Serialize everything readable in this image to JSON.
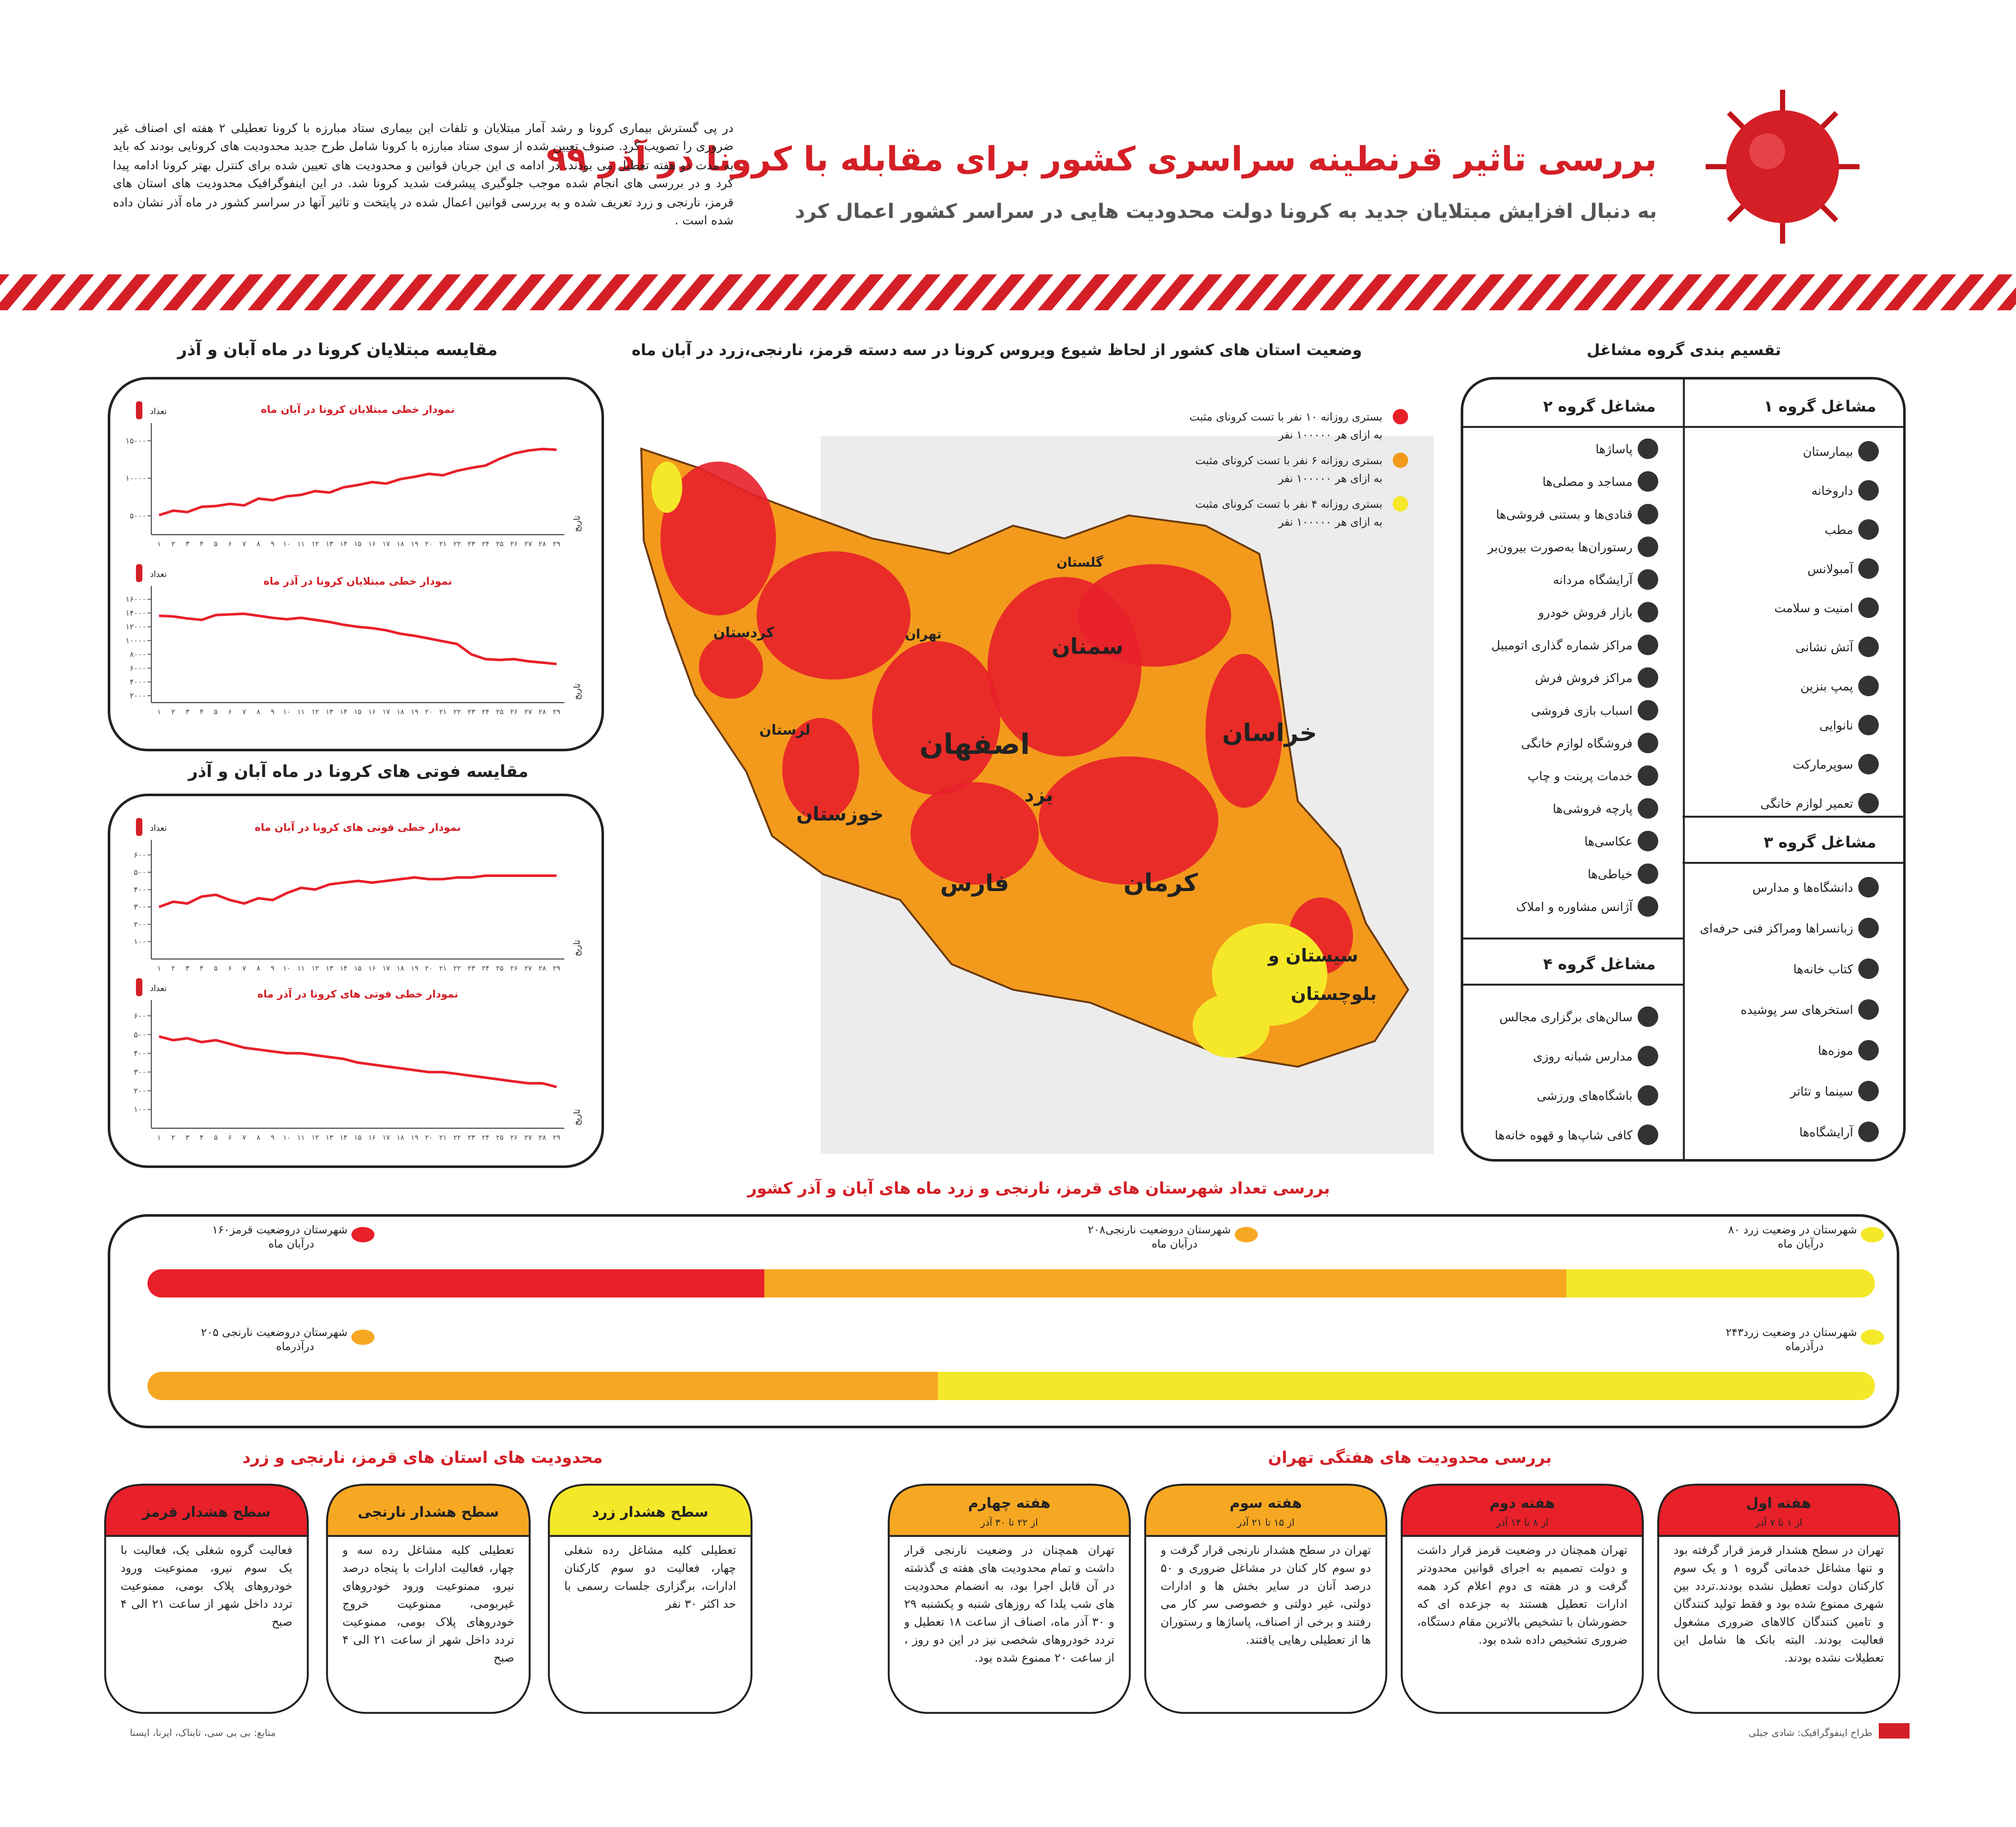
{
  "header": {
    "title": "بررسی تاثیر قرنطینه سراسری کشور برای مقابله با کرونا در آذر ۹۹",
    "subtitle": "به دنبال افزایش مبتلایان جدید به کرونا  دولت محدودیت هایی در سراسر کشور اعمال کرد",
    "intro": "در پی گسترش بیماری کرونا و رشد آمار مبتلایان و تلفات این بیماری ستاد مبارزه با کرونا تعطیلی ۲ هفته ای اصناف غیر ضروری را تصویب کرد. صنوف تعیین شده از سوی ستاد مبارزه با کرونا شامل طرح جدید محدودیت های کرونایی بودند که باید به مدت دو هفته تعطیل می بودند. در ادامه ی این جریان قوانین و محدودیت های تعیین شده برای کنترل بهتر کرونا ادامه پیدا کرد و در بررسی های انجام شده موجب جلوگیری پیشرفت شدید کرونا شد. در این اینفوگرافیک محدودیت های استان های قرمز، نارنجی و زرد تعریف شده و به بررسی قوانین اعمال شده در پایتخت و تاثیر آنها در سراسر کشور در ماه آذر نشان داده شده است ."
  },
  "cases_section": {
    "title": "مقایسه مبتلایان کرونا در ماه آبان و آذر",
    "charts": [
      {
        "type": "line",
        "title": "نمودار خطی مبتلایان کرونا در آبان ماه",
        "y_label": "تعداد",
        "x_label": "تاریخ",
        "color": "#e8202a",
        "categories": [
          "۱",
          "۲",
          "۳",
          "۴",
          "۵",
          "۶",
          "۷",
          "۸",
          "۹",
          "۱۰",
          "۱۱",
          "۱۲",
          "۱۳",
          "۱۴",
          "۱۵",
          "۱۶",
          "۱۷",
          "۱۸",
          "۱۹",
          "۲۰",
          "۲۱",
          "۲۲",
          "۲۳",
          "۲۴",
          "۲۵",
          "۲۶",
          "۲۷",
          "۲۸",
          "۲۹"
        ],
        "values": [
          5100,
          5700,
          5500,
          6200,
          6300,
          6600,
          6400,
          7300,
          7100,
          7600,
          7800,
          8300,
          8100,
          8800,
          9100,
          9500,
          9300,
          9900,
          10200,
          10600,
          10400,
          11000,
          11400,
          11700,
          12600,
          13300,
          13700,
          13900,
          13800
        ],
        "ylim": [
          2500,
          16500
        ],
        "yticks": [
          {
            "value": 5000,
            "label": "۵۰۰۰"
          },
          {
            "value": 10000,
            "label": "۱۰۰۰۰"
          },
          {
            "value": 15000,
            "label": "۱۵۰۰۰"
          }
        ]
      },
      {
        "type": "line",
        "title": "نمودار خطی مبتلایان کرونا در آذر ماه",
        "y_label": "تعداد",
        "x_label": "تاریخ",
        "color": "#e8202a",
        "categories": [
          "۱",
          "۲",
          "۳",
          "۴",
          "۵",
          "۶",
          "۷",
          "۸",
          "۹",
          "۱۰",
          "۱۱",
          "۱۲",
          "۱۳",
          "۱۴",
          "۱۵",
          "۱۶",
          "۱۷",
          "۱۸",
          "۱۹",
          "۲۰",
          "۲۱",
          "۲۲",
          "۲۳",
          "۲۴",
          "۲۵",
          "۲۶",
          "۲۷",
          "۲۸",
          "۲۹"
        ],
        "values": [
          13600,
          13500,
          13200,
          13000,
          13700,
          13800,
          13900,
          13600,
          13300,
          13100,
          13300,
          13000,
          12700,
          12300,
          12000,
          11800,
          11500,
          11000,
          10700,
          10300,
          9900,
          9500,
          8000,
          7300,
          7200,
          7300,
          7000,
          6800,
          6600
        ],
        "ylim": [
          1000,
          17000
        ],
        "yticks": [
          {
            "value": 2000,
            "label": "۲۰۰۰"
          },
          {
            "value": 4000,
            "label": "۴۰۰۰"
          },
          {
            "value": 6000,
            "label": "۶۰۰۰"
          },
          {
            "value": 8000,
            "label": "۸۰۰۰"
          },
          {
            "value": 10000,
            "label": "۱۰۰۰۰"
          },
          {
            "value": 12000,
            "label": "۱۲۰۰۰"
          },
          {
            "value": 14000,
            "label": "۱۴۰۰۰"
          },
          {
            "value": 16000,
            "label": "۱۶۰۰۰"
          }
        ]
      }
    ]
  },
  "deaths_section": {
    "title": "مقایسه فوتی های کرونا در ماه آبان و آذر",
    "charts": [
      {
        "type": "line",
        "title": "نمودار خطی فوتی های کرونا در آبان ماه",
        "y_label": "تعداد",
        "x_label": "تاریخ",
        "color": "#e8202a",
        "categories": [
          "۱",
          "۲",
          "۳",
          "۴",
          "۵",
          "۶",
          "۷",
          "۸",
          "۹",
          "۱۰",
          "۱۱",
          "۱۲",
          "۱۳",
          "۱۴",
          "۱۵",
          "۱۶",
          "۱۷",
          "۱۸",
          "۱۹",
          "۲۰",
          "۲۱",
          "۲۲",
          "۲۳",
          "۲۴",
          "۲۵",
          "۲۶",
          "۲۷",
          "۲۸",
          "۲۹"
        ],
        "values": [
          300,
          330,
          320,
          360,
          370,
          340,
          320,
          350,
          340,
          380,
          410,
          400,
          430,
          440,
          450,
          440,
          450,
          460,
          470,
          460,
          460,
          470,
          470,
          480,
          480,
          480,
          480,
          480,
          480
        ],
        "ylim": [
          0,
          650
        ],
        "yticks": [
          {
            "value": 100,
            "label": "۱۰۰"
          },
          {
            "value": 200,
            "label": "۲۰۰"
          },
          {
            "value": 300,
            "label": "۳۰۰"
          },
          {
            "value": 400,
            "label": "۴۰۰"
          },
          {
            "value": 500,
            "label": "۵۰۰"
          },
          {
            "value": 600,
            "label": "۶۰۰"
          }
        ]
      },
      {
        "type": "line",
        "title": "نمودار خطی فوتی های کرونا در آذر ماه",
        "y_label": "تعداد",
        "x_label": "تاریخ",
        "color": "#e8202a",
        "categories": [
          "۱",
          "۲",
          "۳",
          "۴",
          "۵",
          "۶",
          "۷",
          "۸",
          "۹",
          "۱۰",
          "۱۱",
          "۱۲",
          "۱۳",
          "۱۴",
          "۱۵",
          "۱۶",
          "۱۷",
          "۱۸",
          "۱۹",
          "۲۰",
          "۲۱",
          "۲۲",
          "۲۳",
          "۲۴",
          "۲۵",
          "۲۶",
          "۲۷",
          "۲۸",
          "۲۹"
        ],
        "values": [
          490,
          470,
          480,
          460,
          470,
          450,
          430,
          420,
          410,
          400,
          400,
          390,
          380,
          370,
          350,
          340,
          330,
          320,
          310,
          300,
          300,
          290,
          280,
          270,
          260,
          250,
          240,
          240,
          220
        ],
        "ylim": [
          0,
          650
        ],
        "yticks": [
          {
            "value": 100,
            "label": "۱۰۰"
          },
          {
            "value": 200,
            "label": "۲۰۰"
          },
          {
            "value": 300,
            "label": "۳۰۰"
          },
          {
            "value": 400,
            "label": "۴۰۰"
          },
          {
            "value": 500,
            "label": "۵۰۰"
          },
          {
            "value": 600,
            "label": "۶۰۰"
          }
        ]
      }
    ]
  },
  "map": {
    "title": "وضعیت استان های کشور از لحاظ شیوع ویروس کرونا در سه دسته قرمز، نارنجی،زرد در آبان ماه",
    "legend": [
      {
        "label": "بستری روزانه ۱۰ نفر با تست کرونای مثبت",
        "sub": "به ازای هر ۱۰۰۰۰۰ نفر",
        "color": "#e8202a"
      },
      {
        "label": "بستری روزانه ۶ نفر با تست کرونای مثبت",
        "sub": "به ازای هر ۱۰۰۰۰۰ نفر",
        "color": "#f39a1c"
      },
      {
        "label": "بستری روزانه ۴ نفر با تست کرونای مثبت",
        "sub": "به ازای هر ۱۰۰۰۰۰ نفر",
        "color": "#f5e829"
      }
    ],
    "provinces": [
      "سمنان",
      "اصفهان",
      "خراسان",
      "یزد",
      "کرمان",
      "فارس",
      "خوزستان",
      "لرستان",
      "کردستان",
      "تهران",
      "گلستان",
      "سیستان و",
      "بلوچستان"
    ]
  },
  "occupations": {
    "title": "تقسیم بندی گروه مشاغل",
    "groups": [
      {
        "title": "مشاغل گروه ۱",
        "items": [
          "بیمارستان",
          "داروخانه",
          "مطب",
          "آمبولانس",
          "امنیت و سلامت",
          "آتش نشانی",
          "پمپ بنزین",
          "نانوایی",
          "سوپرمارکت",
          "تعمیر لوازم خانگی"
        ]
      },
      {
        "title": "مشاغل گروه ۲",
        "items": [
          "پاساژها",
          "مساجد و مصلی‌ها",
          "قنادی‌ها و بستنی فروشی‌ها",
          "رستوران‌ها به‌صورت بیرون‌بر",
          "آرایشگاه مردانه",
          "بازار فروش خودرو",
          "مراکز شماره گذاری اتومبیل",
          "مراکز فروش فرش",
          "اسباب بازی فروشی",
          "فروشگاه لوازم خانگی",
          "خدمات پرینت و چاپ",
          "پارچه فروشی‌ها",
          "عکاسی‌ها",
          "خیاطی‌ها",
          "آژانس مشاوره و املاک"
        ]
      },
      {
        "title": "مشاغل گروه ۳",
        "items": [
          "دانشگاه‌ها و مدارس",
          "زبانسراها ومراکز فنی حرفه‌ای",
          "کتاب خانه‌ها",
          "استخرهای سر پوشیده",
          "موزه‌ها",
          "سینما و تئاتر",
          "آرایشگاه‌ها"
        ]
      },
      {
        "title": "مشاغل گروه ۴",
        "items": [
          "سالن‌های برگزاری مجالس",
          "مدارس شبانه روزی",
          "باشگاه‌های ورزشی",
          "کافی شاپ‌ها و قهوه خانه‌ها"
        ]
      }
    ]
  },
  "counties": {
    "title": "بررسی تعداد شهرستان های قرمز، نارنجی و زرد ماه های آبان و آذر کشور",
    "months": [
      {
        "segments": [
          {
            "value": 160,
            "label": "۱۶۰شهرستان دروضعیت قرمز",
            "sub": "درآبان ماه",
            "color": "#e8202a"
          },
          {
            "value": 208,
            "label": "۲۰۸شهرستان دروضعیت نارنجی",
            "sub": "درآبان ماه",
            "color": "#f7a823"
          },
          {
            "value": 80,
            "label": "۸۰ شهرستان در وضعیت زرد",
            "sub": "درآبان ماه",
            "color": "#f5e829"
          }
        ]
      },
      {
        "segments": [
          {
            "value": 205,
            "label": "۲۰۵ شهرستان دروضعیت نارنجی",
            "sub": "درآذرماه",
            "color": "#f7a823"
          },
          {
            "value": 243,
            "label": "۲۴۳شهرستان در وضعیت زرد",
            "sub": "درآذرماه",
            "color": "#f5e829"
          }
        ]
      }
    ]
  },
  "restrictions": {
    "title": "محدودیت های استان های قرمز، نارنجی و زرد",
    "cards": [
      {
        "title": "سطح هشدار قرمز",
        "color": "#e8202a",
        "text": "فعالیت گروه شغلی یک، فعالیت با یک سوم نیرو، ممنوعیت ورود خودروهای پلاک بومی، ممنوعیت تردد داخل شهر از ساعت ۲۱ الی ۴ صبح"
      },
      {
        "title": "سطح هشدار نارنجی",
        "color": "#f7a823",
        "text": "تعطیلی کلیه مشاغل رده سه و چهار، فعالیت ادارات با پنجاه درصد نیرو، ممنوعیت ورود خودروهای غیربومی، ممنوعیت خروج خودروهای پلاک بومی، ممنوعیت تردد داخل شهر از ساعت ۲۱ الی ۴ صبح"
      },
      {
        "title": "سطح هشدار زرد",
        "color": "#f5e829",
        "text": "تعطیلی کلیه مشاغل رده شغلی چهار، فعالیت دو سوم کارکنان ادارات، برگزاری جلسات رسمی با حد اکثر ۳۰ نفر"
      }
    ]
  },
  "tehran": {
    "title": "بررسی محدودیت های هفتگی تهران",
    "weeks": [
      {
        "title": "هفته اول",
        "dates": "از ۱ تا ۷ آذر",
        "color": "#e8202a",
        "text": "تهران در سطح هشدار قرمز قرار گرفته بود و تنها مشاغل خدماتی گروه ۱ و یک سوم کارکنان دولت تعطیل نشده بودند.تردد بین شهری ممنوع شده بود و فقط تولید کنندگان و تامین کنندگان کالاهای ضروری مشغول فعالیت بودند. البته بانک ها شامل این تعطیلات نشده بودند."
      },
      {
        "title": "هفته دوم",
        "dates": "از ۸ تا ۱۴ آذر",
        "color": "#e8202a",
        "text": "تهران همچنان در وضعیت قرمز قرار داشت و دولت تصمیم به اجرای قوانین محدودتر گرفت و در هفته ی دوم اعلام کرد همه ادارات تعطیل هستند به جزعده ای که حضورشان با تشخیص بالاترین مقام دستگاه، ضروری تشخیص داده شده بود."
      },
      {
        "title": "هفته سوم",
        "dates": "از ۱۵ تا ۲۱ آذر",
        "color": "#f7a823",
        "text": "تهران در سطح هشدار نارنجی قرار گرفت و دو سوم کار کنان در مشاغل ضروری و ۵۰ درصد آنان در سایر بخش ها و ادارات دولتی، غیر دولتی و خصوصی سر کار می رفتند و برخی از اصناف، پاساژها و رستوران ها از تعطیلی رهایی یافتند."
      },
      {
        "title": "هفته چهارم",
        "dates": "از ۲۲ تا ۳۰ آذر",
        "color": "#f7a823",
        "text": "تهران همچنان در وضعیت نارنجی قرار داشت و تمام محدودیت های هفته ی گذشته در آن قابل اجرا بود، به انضمام محدودیت های شب یلدا که روزهای شنبه و یکشنبه ۲۹ و ۳۰ آذر ماه، اصناف از ساعت ۱۸ تعطیل و تردد خودروهای شخصی نیز در این دو روز ، از ساعت ۲۰ ممنوع شده بود."
      }
    ]
  },
  "footer": {
    "source": "منابع: بی بی سی، تابناک، ایرنا، ایسنا",
    "credit": "طراح اینفوگرافیک: شادی جبلی"
  }
}
